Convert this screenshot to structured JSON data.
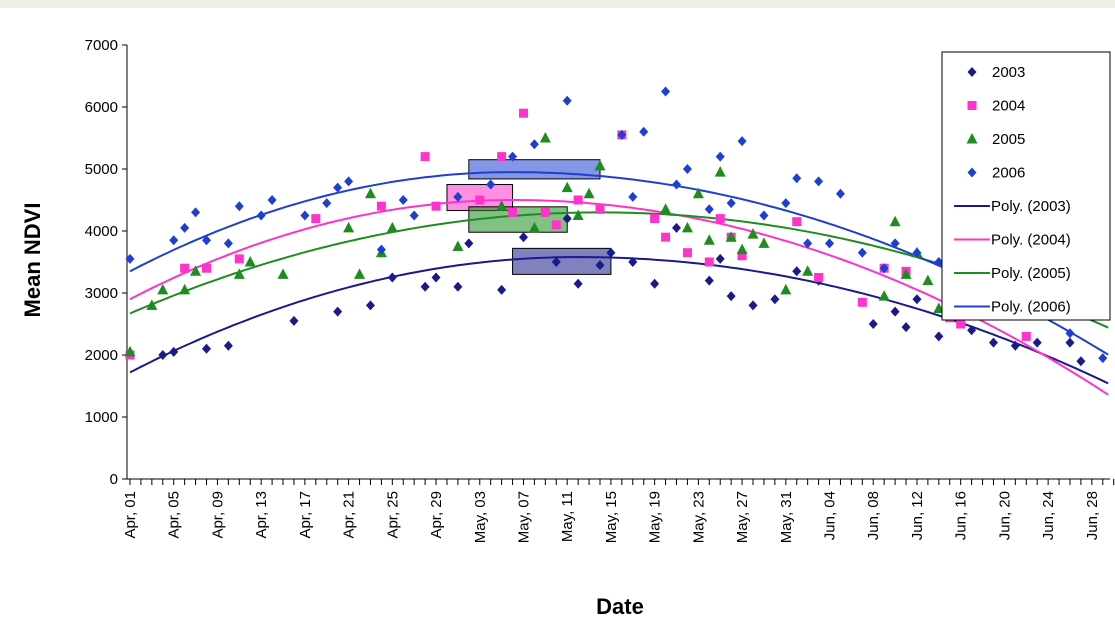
{
  "chart_data": {
    "type": "scatter",
    "xlabel": "Date",
    "ylabel": "Mean NDVI",
    "ylim": [
      0,
      7000
    ],
    "yticks": [
      0,
      1000,
      2000,
      3000,
      4000,
      5000,
      6000,
      7000
    ],
    "x_start": "Apr, 01",
    "x_end": "Jun, 30",
    "x_tick_labels": [
      "Apr, 01",
      "Apr, 05",
      "Apr, 09",
      "Apr, 13",
      "Apr, 17",
      "Apr, 21",
      "Apr, 25",
      "Apr, 29",
      "May, 03",
      "May, 07",
      "May, 11",
      "May, 15",
      "May, 19",
      "May, 23",
      "May, 27",
      "May, 31",
      "Jun, 04",
      "Jun, 08",
      "Jun, 12",
      "Jun, 16",
      "Jun, 20",
      "Jun, 24",
      "Jun, 28"
    ],
    "legend_position": "top-right",
    "grid": false,
    "series": [
      {
        "name": "2003",
        "marker": "diamond",
        "color": "#1a1a8c",
        "points": [
          [
            "Apr, 04",
            2000
          ],
          [
            "Apr, 05",
            2050
          ],
          [
            "Apr, 08",
            2100
          ],
          [
            "Apr, 10",
            2150
          ],
          [
            "Apr, 16",
            2550
          ],
          [
            "Apr, 20",
            2700
          ],
          [
            "Apr, 23",
            2800
          ],
          [
            "Apr, 25",
            3250
          ],
          [
            "Apr, 28",
            3100
          ],
          [
            "Apr, 29",
            3250
          ],
          [
            "May, 01",
            3100
          ],
          [
            "May, 02",
            3800
          ],
          [
            "May, 05",
            3050
          ],
          [
            "May, 07",
            3900
          ],
          [
            "May, 10",
            3500
          ],
          [
            "May, 11",
            4200
          ],
          [
            "May, 12",
            3150
          ],
          [
            "May, 14",
            3450
          ],
          [
            "May, 15",
            3650
          ],
          [
            "May, 17",
            3500
          ],
          [
            "May, 19",
            3150
          ],
          [
            "May, 21",
            4050
          ],
          [
            "May, 24",
            3200
          ],
          [
            "May, 25",
            3550
          ],
          [
            "May, 26",
            2950
          ],
          [
            "May, 28",
            2800
          ],
          [
            "May, 30",
            2900
          ],
          [
            "Jun, 01",
            3350
          ],
          [
            "Jun, 03",
            3200
          ],
          [
            "Jun, 08",
            2500
          ],
          [
            "Jun, 10",
            2700
          ],
          [
            "Jun, 11",
            2450
          ],
          [
            "Jun, 12",
            2900
          ],
          [
            "Jun, 14",
            2300
          ],
          [
            "Jun, 17",
            2400
          ],
          [
            "Jun, 19",
            2200
          ],
          [
            "Jun, 21",
            2150
          ],
          [
            "Jun, 23",
            2200
          ],
          [
            "Jun, 26",
            2200
          ],
          [
            "Jun, 27",
            1900
          ]
        ]
      },
      {
        "name": "2004",
        "marker": "square",
        "color": "#ff33cc",
        "points": [
          [
            "Apr, 01",
            2000
          ],
          [
            "Apr, 06",
            3400
          ],
          [
            "Apr, 08",
            3400
          ],
          [
            "Apr, 11",
            3550
          ],
          [
            "Apr, 18",
            4200
          ],
          [
            "Apr, 24",
            4400
          ],
          [
            "Apr, 28",
            5200
          ],
          [
            "Apr, 29",
            4400
          ],
          [
            "May, 03",
            4500
          ],
          [
            "May, 05",
            5200
          ],
          [
            "May, 06",
            4300
          ],
          [
            "May, 07",
            5900
          ],
          [
            "May, 09",
            4300
          ],
          [
            "May, 10",
            4100
          ],
          [
            "May, 12",
            4500
          ],
          [
            "May, 14",
            4350
          ],
          [
            "May, 16",
            5550
          ],
          [
            "May, 19",
            4200
          ],
          [
            "May, 20",
            3900
          ],
          [
            "May, 22",
            3650
          ],
          [
            "May, 24",
            3500
          ],
          [
            "May, 25",
            4200
          ],
          [
            "May, 26",
            3900
          ],
          [
            "May, 27",
            3600
          ],
          [
            "Jun, 01",
            4150
          ],
          [
            "Jun, 03",
            3250
          ],
          [
            "Jun, 07",
            2850
          ],
          [
            "Jun, 09",
            3400
          ],
          [
            "Jun, 11",
            3350
          ],
          [
            "Jun, 15",
            2600
          ],
          [
            "Jun, 16",
            2500
          ],
          [
            "Jun, 22",
            2300
          ],
          [
            "Jun, 30",
            1600
          ]
        ]
      },
      {
        "name": "2005",
        "marker": "triangle",
        "color": "#1e8c1e",
        "points": [
          [
            "Apr, 01",
            2050
          ],
          [
            "Apr, 03",
            2800
          ],
          [
            "Apr, 04",
            3050
          ],
          [
            "Apr, 06",
            3050
          ],
          [
            "Apr, 07",
            3350
          ],
          [
            "Apr, 11",
            3300
          ],
          [
            "Apr, 12",
            3500
          ],
          [
            "Apr, 15",
            3300
          ],
          [
            "Apr, 21",
            4050
          ],
          [
            "Apr, 22",
            3300
          ],
          [
            "Apr, 23",
            4600
          ],
          [
            "Apr, 24",
            3650
          ],
          [
            "Apr, 25",
            4050
          ],
          [
            "May, 01",
            3750
          ],
          [
            "May, 05",
            4400
          ],
          [
            "May, 08",
            4050
          ],
          [
            "May, 09",
            5500
          ],
          [
            "May, 11",
            4700
          ],
          [
            "May, 12",
            4250
          ],
          [
            "May, 13",
            4600
          ],
          [
            "May, 14",
            5050
          ],
          [
            "May, 20",
            4350
          ],
          [
            "May, 22",
            4050
          ],
          [
            "May, 23",
            4600
          ],
          [
            "May, 24",
            3850
          ],
          [
            "May, 25",
            4950
          ],
          [
            "May, 26",
            3900
          ],
          [
            "May, 27",
            3700
          ],
          [
            "May, 28",
            3950
          ],
          [
            "May, 29",
            3800
          ],
          [
            "May, 31",
            3050
          ],
          [
            "Jun, 02",
            3350
          ],
          [
            "Jun, 09",
            2950
          ],
          [
            "Jun, 10",
            4150
          ],
          [
            "Jun, 11",
            3300
          ],
          [
            "Jun, 12",
            3650
          ],
          [
            "Jun, 13",
            3200
          ],
          [
            "Jun, 14",
            2750
          ]
        ]
      },
      {
        "name": "2006",
        "marker": "diamond",
        "color": "#1f3fd0",
        "points": [
          [
            "Apr, 01",
            3550
          ],
          [
            "Apr, 05",
            3850
          ],
          [
            "Apr, 06",
            4050
          ],
          [
            "Apr, 07",
            4300
          ],
          [
            "Apr, 08",
            3850
          ],
          [
            "Apr, 10",
            3800
          ],
          [
            "Apr, 11",
            4400
          ],
          [
            "Apr, 13",
            4250
          ],
          [
            "Apr, 14",
            4500
          ],
          [
            "Apr, 17",
            4250
          ],
          [
            "Apr, 19",
            4450
          ],
          [
            "Apr, 20",
            4700
          ],
          [
            "Apr, 21",
            4800
          ],
          [
            "Apr, 24",
            3700
          ],
          [
            "Apr, 26",
            4500
          ],
          [
            "Apr, 27",
            4250
          ],
          [
            "May, 01",
            4550
          ],
          [
            "May, 04",
            4750
          ],
          [
            "May, 06",
            5200
          ],
          [
            "May, 08",
            5400
          ],
          [
            "May, 11",
            6100
          ],
          [
            "May, 16",
            5550
          ],
          [
            "May, 17",
            4550
          ],
          [
            "May, 18",
            5600
          ],
          [
            "May, 20",
            6250
          ],
          [
            "May, 21",
            4750
          ],
          [
            "May, 22",
            5000
          ],
          [
            "May, 24",
            4350
          ],
          [
            "May, 25",
            5200
          ],
          [
            "May, 26",
            4450
          ],
          [
            "May, 27",
            5450
          ],
          [
            "May, 29",
            4250
          ],
          [
            "May, 31",
            4450
          ],
          [
            "Jun, 01",
            4850
          ],
          [
            "Jun, 02",
            3800
          ],
          [
            "Jun, 03",
            4800
          ],
          [
            "Jun, 04",
            3800
          ],
          [
            "Jun, 05",
            4600
          ],
          [
            "Jun, 07",
            3650
          ],
          [
            "Jun, 09",
            3400
          ],
          [
            "Jun, 10",
            3800
          ],
          [
            "Jun, 12",
            3650
          ],
          [
            "Jun, 14",
            3500
          ],
          [
            "Jun, 17",
            3300
          ],
          [
            "Jun, 20",
            3000
          ],
          [
            "Jun, 22",
            2650
          ],
          [
            "Jun, 26",
            2350
          ],
          [
            "Jun, 29",
            1950
          ]
        ]
      },
      {
        "name": "Poly. (2003)",
        "type": "line",
        "color": "#1a1a8c",
        "x_peak": "May, 12",
        "peak": 3580,
        "start": 1720,
        "end": 1500
      },
      {
        "name": "Poly. (2004)",
        "type": "line",
        "color": "#ff33cc",
        "x_peak": "May, 06",
        "peak": 4500,
        "start": 2900,
        "end": 1300
      },
      {
        "name": "Poly. (2005)",
        "type": "line",
        "color": "#1e8c1e",
        "x_peak": "May, 14",
        "peak": 4300,
        "start": 2670,
        "end": 2400
      },
      {
        "name": "Poly. (2006)",
        "type": "line",
        "color": "#1f3fd0",
        "x_peak": "May, 06",
        "peak": 4950,
        "start": 3350,
        "end": 1950
      }
    ],
    "peak_boxes": [
      {
        "series": "2003",
        "color": "#1a1a8c",
        "x_start": "May, 06",
        "x_end": "May, 15",
        "y_start": 3300,
        "y_end": 3720
      },
      {
        "series": "2004",
        "color": "#ff33cc",
        "x_start": "Apr, 30",
        "x_end": "May, 06",
        "y_start": 4330,
        "y_end": 4750
      },
      {
        "series": "2005",
        "color": "#1e8c1e",
        "x_start": "May, 02",
        "x_end": "May, 11",
        "y_start": 3980,
        "y_end": 4390
      },
      {
        "series": "2006",
        "color": "#1f3fd0",
        "x_start": "May, 02",
        "x_end": "May, 14",
        "y_start": 4840,
        "y_end": 5150
      }
    ]
  }
}
